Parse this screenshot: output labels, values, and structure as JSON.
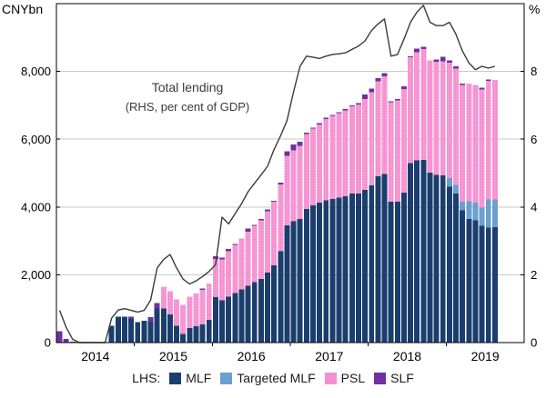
{
  "axes": {
    "left_unit": "CNYbn",
    "right_unit": "%"
  },
  "annotation": {
    "line1": "Total lending",
    "line2": "(RHS, per cent of GDP)"
  },
  "legend": {
    "prefix": "LHS:",
    "items": [
      {
        "label": "MLF",
        "color": "#1b3e6e"
      },
      {
        "label": "Targeted MLF",
        "color": "#6b9fce"
      },
      {
        "label": "PSL",
        "color": "#f58fd0"
      },
      {
        "label": "SLF",
        "color": "#7030a0"
      }
    ]
  },
  "chart_data": {
    "type": "bar",
    "stacked": true,
    "grid": true,
    "legend_position": "bottom",
    "months": [
      "2014-01",
      "2014-02",
      "2014-03",
      "2014-04",
      "2014-05",
      "2014-06",
      "2014-07",
      "2014-08",
      "2014-09",
      "2014-10",
      "2014-11",
      "2014-12",
      "2015-01",
      "2015-02",
      "2015-03",
      "2015-04",
      "2015-05",
      "2015-06",
      "2015-07",
      "2015-08",
      "2015-09",
      "2015-10",
      "2015-11",
      "2015-12",
      "2016-01",
      "2016-02",
      "2016-03",
      "2016-04",
      "2016-05",
      "2016-06",
      "2016-07",
      "2016-08",
      "2016-09",
      "2016-10",
      "2016-11",
      "2016-12",
      "2017-01",
      "2017-02",
      "2017-03",
      "2017-04",
      "2017-05",
      "2017-06",
      "2017-07",
      "2017-08",
      "2017-09",
      "2017-10",
      "2017-11",
      "2017-12",
      "2018-01",
      "2018-02",
      "2018-03",
      "2018-04",
      "2018-05",
      "2018-06",
      "2018-07",
      "2018-08",
      "2018-09",
      "2018-10",
      "2018-11",
      "2018-12",
      "2019-01",
      "2019-02",
      "2019-03",
      "2019-04",
      "2019-05",
      "2019-06",
      "2019-07",
      "2019-08"
    ],
    "series": [
      {
        "name": "MLF",
        "color": "#1b3e6e",
        "unit": "CNYbn",
        "values": [
          0,
          0,
          0,
          0,
          0,
          0,
          0,
          0,
          500,
          770,
          770,
          700,
          600,
          650,
          620,
          1000,
          1000,
          830,
          500,
          250,
          430,
          480,
          540,
          665,
          1345,
          1250,
          1360,
          1460,
          1570,
          1680,
          1780,
          1880,
          2070,
          2280,
          2700,
          3455,
          3573,
          3650,
          3940,
          4050,
          4130,
          4190,
          4240,
          4270,
          4320,
          4400,
          4400,
          4500,
          4640,
          4900,
          4970,
          4150,
          4150,
          4420,
          5290,
          5370,
          5390,
          5020,
          4950,
          4930,
          4600,
          4400,
          3900,
          3650,
          3600,
          3450,
          3395,
          3400
        ]
      },
      {
        "name": "Targeted MLF",
        "color": "#6b9fce",
        "unit": "CNYbn",
        "values": [
          0,
          0,
          0,
          0,
          0,
          0,
          0,
          0,
          0,
          0,
          0,
          0,
          0,
          0,
          0,
          0,
          0,
          0,
          0,
          0,
          0,
          0,
          0,
          0,
          0,
          0,
          0,
          0,
          0,
          0,
          0,
          0,
          0,
          0,
          0,
          0,
          0,
          0,
          0,
          0,
          0,
          0,
          0,
          0,
          0,
          0,
          0,
          0,
          0,
          0,
          0,
          0,
          0,
          0,
          0,
          0,
          0,
          0,
          0,
          0,
          257,
          257,
          257,
          525,
          525,
          525,
          823,
          823
        ]
      },
      {
        "name": "PSL",
        "color": "#f58fd0",
        "texture": "dots",
        "unit": "CNYbn",
        "values": [
          0,
          0,
          0,
          0,
          0,
          0,
          0,
          0,
          0,
          0,
          0,
          0,
          0,
          0,
          0,
          0,
          645,
          687,
          779,
          859,
          926,
          968,
          1020,
          1081,
          1120,
          1200,
          1340,
          1420,
          1500,
          1590,
          1660,
          1730,
          1800,
          1870,
          1960,
          2054,
          2100,
          2150,
          2210,
          2260,
          2310,
          2400,
          2450,
          2500,
          2530,
          2570,
          2620,
          2684,
          2750,
          2810,
          2880,
          2940,
          3000,
          3064,
          3130,
          3200,
          3274,
          3300,
          3340,
          3370,
          3400,
          3430,
          3450,
          3470,
          3480,
          3490,
          3500,
          3520
        ]
      },
      {
        "name": "SLF",
        "color": "#7030a0",
        "unit": "CNYbn",
        "values": [
          340,
          110,
          25,
          0,
          0,
          0,
          0,
          0,
          0,
          0,
          0,
          70,
          0,
          0,
          130,
          170,
          0,
          0,
          0,
          0,
          0,
          0,
          40,
          0,
          80,
          60,
          60,
          30,
          0,
          90,
          30,
          30,
          60,
          30,
          60,
          129,
          170,
          130,
          40,
          30,
          30,
          50,
          30,
          30,
          40,
          30,
          40,
          130,
          100,
          90,
          100,
          30,
          40,
          80,
          30,
          100,
          60,
          0,
          60,
          130,
          70,
          60,
          40,
          0,
          0,
          60,
          40,
          0
        ]
      }
    ],
    "line_series": {
      "name": "Total lending (RHS, per cent of GDP)",
      "axis": "right",
      "color": "#3a3a3a",
      "unit": "% of GDP",
      "values": [
        0.95,
        0.45,
        0.1,
        0,
        0,
        0,
        0,
        0,
        0.72,
        0.96,
        1.0,
        0.95,
        0.9,
        0.95,
        1.25,
        2.2,
        2.45,
        2.6,
        2.2,
        1.87,
        1.73,
        1.82,
        1.95,
        2.1,
        2.3,
        3.7,
        3.5,
        3.8,
        4.1,
        4.45,
        4.7,
        4.95,
        5.2,
        5.7,
        6.1,
        6.55,
        7.4,
        8.15,
        8.45,
        8.42,
        8.38,
        8.45,
        8.5,
        8.52,
        8.55,
        8.65,
        8.75,
        8.9,
        9.2,
        9.4,
        9.55,
        8.45,
        8.5,
        8.95,
        9.45,
        9.75,
        9.95,
        9.45,
        9.35,
        9.35,
        9.45,
        9.1,
        8.6,
        8.25,
        8.05,
        8.15,
        8.1,
        8.15
      ]
    },
    "left_axis": {
      "unit": "CNYbn",
      "min": 0,
      "max": 10000,
      "ticks": [
        0,
        2000,
        4000,
        6000,
        8000
      ],
      "tick_labels": [
        "0",
        "2,000",
        "4,000",
        "6,000",
        "8,000"
      ]
    },
    "right_axis": {
      "unit": "%",
      "min": 0,
      "max": 10,
      "ticks": [
        0,
        2,
        4,
        6,
        8
      ],
      "tick_labels": [
        "0",
        "2",
        "4",
        "6",
        "8"
      ]
    },
    "x_axis": {
      "year_labels": [
        "2014",
        "2015",
        "2016",
        "2017",
        "2018",
        "2019"
      ],
      "total_month_slots": 72,
      "start_month": "2014-01"
    },
    "colors": {
      "grid": "#c9c9c9",
      "frame": "#000000",
      "psl_dot": "#fbc1e7"
    }
  }
}
